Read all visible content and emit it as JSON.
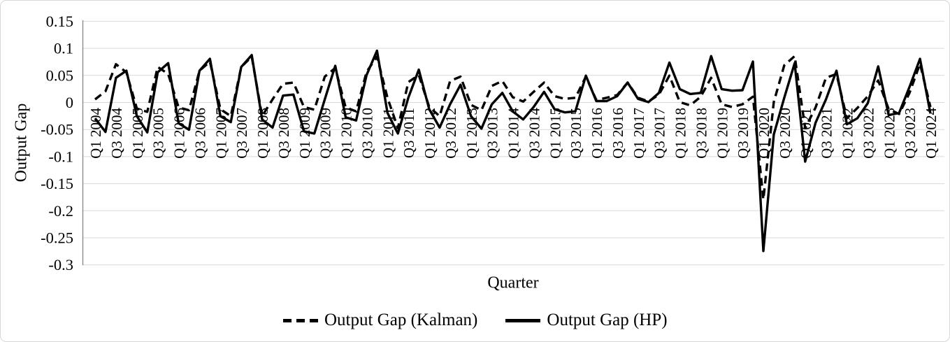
{
  "chart_data": {
    "type": "line",
    "title": "",
    "xlabel": "Quarter",
    "ylabel": "Output Gap",
    "legend_position": "bottom",
    "grid": "horizontal",
    "line_color": "#000000",
    "ylim": [
      -0.3,
      0.15
    ],
    "ytick_labels": [
      "0.15",
      "0.1",
      "0.05",
      "0",
      "-0.05",
      "-0.1",
      "-0.15",
      "-0.2",
      "-0.25",
      "-0.3"
    ],
    "ytick_values": [
      0.15,
      0.1,
      0.05,
      0,
      -0.05,
      -0.1,
      -0.15,
      -0.2,
      -0.25,
      -0.3
    ],
    "xtick_every": 2,
    "x": [
      "Q1 2004",
      "Q2 2004",
      "Q3 2004",
      "Q4 2004",
      "Q1 2005",
      "Q2 2005",
      "Q3 2005",
      "Q4 2005",
      "Q1 2006",
      "Q2 2006",
      "Q3 2006",
      "Q4 2006",
      "Q1 2007",
      "Q2 2007",
      "Q3 2007",
      "Q4 2007",
      "Q1 2008",
      "Q2 2008",
      "Q3 2008",
      "Q4 2008",
      "Q1 2009",
      "Q2 2009",
      "Q3 2009",
      "Q4 2009",
      "Q1 2010",
      "Q2 2010",
      "Q3 2010",
      "Q4 2010",
      "Q1 2011",
      "Q2 2011",
      "Q3 2011",
      "Q4 2011",
      "Q1 2012",
      "Q2 2012",
      "Q3 2012",
      "Q4 2012",
      "Q1 2013",
      "Q2 2013",
      "Q3 2013",
      "Q4 2013",
      "Q1 2014",
      "Q2 2014",
      "Q3 2014",
      "Q4 2014",
      "Q1 2015",
      "Q2 2015",
      "Q3 2015",
      "Q4 2015",
      "Q1 2016",
      "Q2 2016",
      "Q3 2016",
      "Q4 2016",
      "Q1 2017",
      "Q2 2017",
      "Q3 2017",
      "Q4 2017",
      "Q1 2018",
      "Q2 2018",
      "Q3 2018",
      "Q4 2018",
      "Q1 2019",
      "Q2 2019",
      "Q3 2019",
      "Q4 2019",
      "Q1 2020",
      "Q2 2020",
      "Q3 2020",
      "Q4 2020",
      "Q1 2021",
      "Q2 2021",
      "Q3 2021",
      "Q4 2021",
      "Q1 2022",
      "Q2 2022",
      "Q3 2022",
      "Q4 2022",
      "Q1 2023",
      "Q2 2023",
      "Q3 2023",
      "Q4 2023",
      "Q1 2024"
    ],
    "series": [
      {
        "name": "Output Gap (Kalman)",
        "style": "dashed",
        "values": [
          0.005,
          0.02,
          0.07,
          0.055,
          -0.012,
          -0.018,
          0.065,
          0.052,
          -0.01,
          -0.015,
          0.058,
          0.075,
          -0.013,
          -0.026,
          0.065,
          0.084,
          -0.026,
          0.005,
          0.034,
          0.036,
          -0.009,
          -0.014,
          0.047,
          0.063,
          -0.01,
          -0.017,
          0.056,
          0.084,
          0.008,
          -0.048,
          0.037,
          0.05,
          -0.009,
          -0.026,
          0.039,
          0.047,
          -0.005,
          -0.015,
          0.03,
          0.039,
          0.009,
          0.001,
          0.019,
          0.036,
          0.011,
          0.006,
          0.008,
          0.047,
          0.004,
          0.008,
          0.013,
          0.036,
          0.008,
          0.001,
          0.014,
          0.049,
          0.0,
          -0.006,
          0.01,
          0.045,
          -0.004,
          -0.009,
          -0.004,
          0.01,
          -0.18,
          0.0,
          0.068,
          0.085,
          -0.048,
          -0.01,
          0.045,
          0.052,
          -0.03,
          -0.011,
          0.011,
          0.04,
          -0.013,
          -0.022,
          0.017,
          0.071,
          -0.009
        ]
      },
      {
        "name": "Output Gap (HP)",
        "style": "solid",
        "values": [
          -0.03,
          -0.055,
          0.045,
          0.058,
          -0.026,
          -0.056,
          0.055,
          0.072,
          -0.039,
          -0.051,
          0.058,
          0.08,
          -0.026,
          -0.037,
          0.065,
          0.087,
          -0.032,
          -0.047,
          0.012,
          0.014,
          -0.054,
          -0.058,
          0.005,
          0.067,
          -0.028,
          -0.034,
          0.05,
          0.095,
          -0.02,
          -0.058,
          0.008,
          0.06,
          -0.013,
          -0.047,
          -0.004,
          0.032,
          -0.026,
          -0.049,
          -0.004,
          0.017,
          -0.017,
          -0.032,
          -0.009,
          0.019,
          -0.013,
          -0.019,
          -0.017,
          0.049,
          0.002,
          0.002,
          0.011,
          0.036,
          0.006,
          0.0,
          0.017,
          0.073,
          0.024,
          0.015,
          0.017,
          0.085,
          0.024,
          0.021,
          0.022,
          0.075,
          -0.275,
          -0.06,
          0.008,
          0.072,
          -0.11,
          -0.038,
          0.005,
          0.058,
          -0.041,
          -0.03,
          -0.002,
          0.066,
          -0.024,
          -0.02,
          0.028,
          0.08,
          -0.021
        ]
      }
    ]
  }
}
